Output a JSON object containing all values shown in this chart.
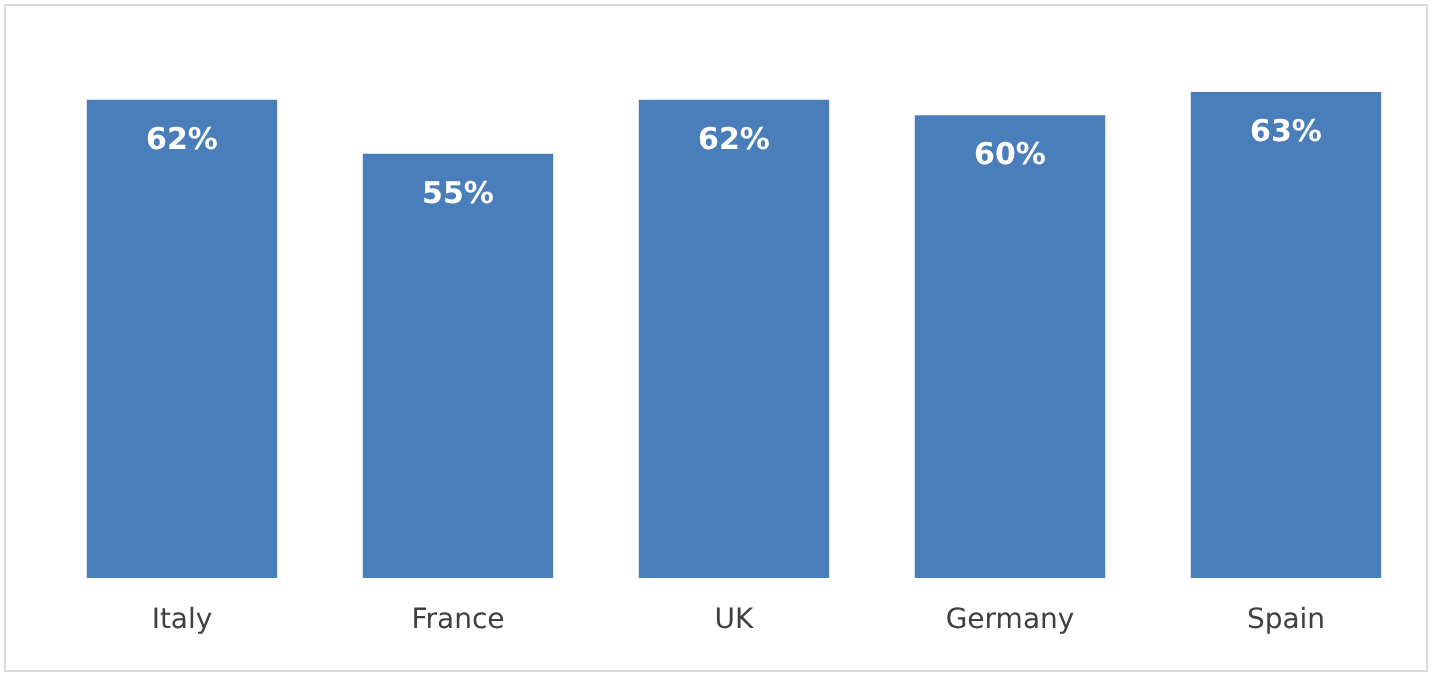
{
  "chart_data": {
    "type": "bar",
    "categories": [
      "Italy",
      "France",
      "UK",
      "Germany",
      "Spain"
    ],
    "values": [
      62,
      55,
      62,
      60,
      63
    ],
    "color": "#4a7ebb",
    "data_labels": true,
    "value_labels": [
      "62%",
      "55%",
      "62%",
      "60%",
      "63%"
    ],
    "grid": false
  }
}
